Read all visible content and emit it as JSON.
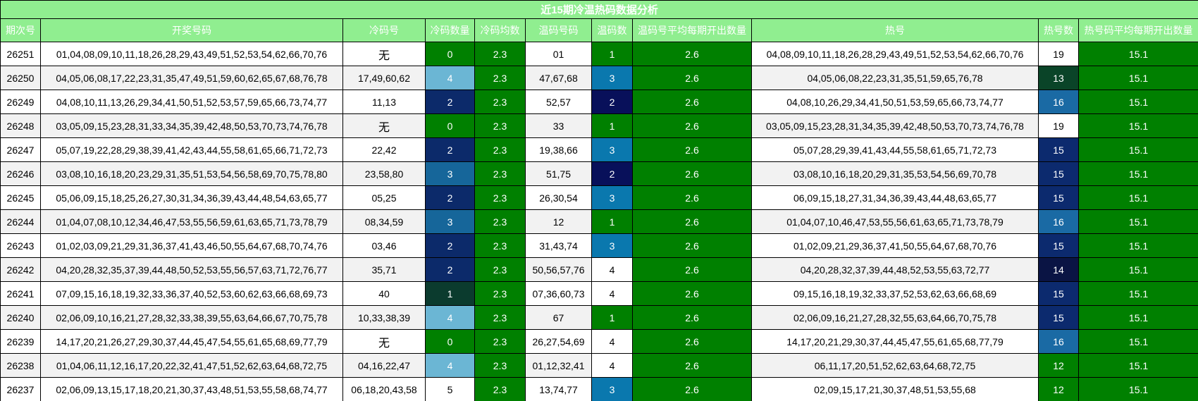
{
  "title": "近15期冷温热码数据分析",
  "header_color": "#90ee90",
  "columns": [
    "期次号",
    "开奖号码",
    "冷码号",
    "冷码数量",
    "冷码均数",
    "温码号码",
    "温码数",
    "温码号平均每期开出数量",
    "热号",
    "热号数",
    "热号码平均每期开出数量"
  ],
  "rows": [
    [
      26251,
      "01,04,08,09,10,11,18,26,28,29,43,49,51,52,53,54,62,66,70,76",
      "无",
      0,
      2.3,
      "01",
      1,
      2.6,
      "04,08,09,10,11,18,26,28,29,43,49,51,52,53,54,62,66,70,76",
      19,
      15.1
    ],
    [
      26250,
      "04,05,06,08,17,22,23,31,35,47,49,51,59,60,62,65,67,68,76,78",
      "17,49,60,62",
      4,
      2.3,
      "47,67,68",
      3,
      2.6,
      "04,05,06,08,22,23,31,35,51,59,65,76,78",
      13,
      15.1
    ],
    [
      26249,
      "04,08,10,11,13,26,29,34,41,50,51,52,53,57,59,65,66,73,74,77",
      "11,13",
      2,
      2.3,
      "52,57",
      2,
      2.6,
      "04,08,10,26,29,34,41,50,51,53,59,65,66,73,74,77",
      16,
      15.1
    ],
    [
      26248,
      "03,05,09,15,23,28,31,33,34,35,39,42,48,50,53,70,73,74,76,78",
      "无",
      0,
      2.3,
      "33",
      1,
      2.6,
      "03,05,09,15,23,28,31,34,35,39,42,48,50,53,70,73,74,76,78",
      19,
      15.1
    ],
    [
      26247,
      "05,07,19,22,28,29,38,39,41,42,43,44,55,58,61,65,66,71,72,73",
      "22,42",
      2,
      2.3,
      "19,38,66",
      3,
      2.6,
      "05,07,28,29,39,41,43,44,55,58,61,65,71,72,73",
      15,
      15.1
    ],
    [
      26246,
      "03,08,10,16,18,20,23,29,31,35,51,53,54,56,58,69,70,75,78,80",
      "23,58,80",
      3,
      2.3,
      "51,75",
      2,
      2.6,
      "03,08,10,16,18,20,29,31,35,53,54,56,69,70,78",
      15,
      15.1
    ],
    [
      26245,
      "05,06,09,15,18,25,26,27,30,31,34,36,39,43,44,48,54,63,65,77",
      "05,25",
      2,
      2.3,
      "26,30,54",
      3,
      2.6,
      "06,09,15,18,27,31,34,36,39,43,44,48,63,65,77",
      15,
      15.1
    ],
    [
      26244,
      "01,04,07,08,10,12,34,46,47,53,55,56,59,61,63,65,71,73,78,79",
      "08,34,59",
      3,
      2.3,
      "12",
      1,
      2.6,
      "01,04,07,10,46,47,53,55,56,61,63,65,71,73,78,79",
      16,
      15.1
    ],
    [
      26243,
      "01,02,03,09,21,29,31,36,37,41,43,46,50,55,64,67,68,70,74,76",
      "03,46",
      2,
      2.3,
      "31,43,74",
      3,
      2.6,
      "01,02,09,21,29,36,37,41,50,55,64,67,68,70,76",
      15,
      15.1
    ],
    [
      26242,
      "04,20,28,32,35,37,39,44,48,50,52,53,55,56,57,63,71,72,76,77",
      "35,71",
      2,
      2.3,
      "50,56,57,76",
      4,
      2.6,
      "04,20,28,32,37,39,44,48,52,53,55,63,72,77",
      14,
      15.1
    ],
    [
      26241,
      "07,09,15,16,18,19,32,33,36,37,40,52,53,60,62,63,66,68,69,73",
      "40",
      1,
      2.3,
      "07,36,60,73",
      4,
      2.6,
      "09,15,16,18,19,32,33,37,52,53,62,63,66,68,69",
      15,
      15.1
    ],
    [
      26240,
      "02,06,09,10,16,21,27,28,32,33,38,39,55,63,64,66,67,70,75,78",
      "10,33,38,39",
      4,
      2.3,
      "67",
      1,
      2.6,
      "02,06,09,16,21,27,28,32,55,63,64,66,70,75,78",
      15,
      15.1
    ],
    [
      26239,
      "14,17,20,21,26,27,29,30,37,44,45,47,54,55,61,65,68,69,77,79",
      "无",
      0,
      2.3,
      "26,27,54,69",
      4,
      2.6,
      "14,17,20,21,29,30,37,44,45,47,55,61,65,68,77,79",
      16,
      15.1
    ],
    [
      26238,
      "01,04,06,11,12,16,17,20,22,32,41,47,51,52,62,63,64,68,72,75",
      "04,16,22,47",
      4,
      2.3,
      "01,12,32,41",
      4,
      2.6,
      "06,11,17,20,51,52,62,63,64,68,72,75",
      12,
      15.1
    ],
    [
      26237,
      "02,06,09,13,15,17,18,20,21,30,37,43,48,51,53,55,58,68,74,77",
      "06,18,20,43,58",
      5,
      2.3,
      "13,74,77",
      3,
      2.6,
      "02,09,15,17,21,30,37,48,51,53,55,68",
      12,
      15.1
    ]
  ],
  "column_colors": {
    "4": "#008000",
    "7": "#008000",
    "10": "#008000"
  },
  "color_scales": {
    "3": {
      "0": "#008000",
      "1": "#0b3b2e",
      "2": "#0c2a6a",
      "3": "#16669a",
      "4": "#6bb6d4",
      "5": "#ffffff"
    },
    "6": {
      "1": "#008000",
      "2": "#08105a",
      "3": "#0a78ae",
      "4": "#ffffff"
    },
    "9": {
      "12": "#008000",
      "13": "#0a4428",
      "14": "#0a1444",
      "15": "#0c2a6e",
      "16": "#1a6aa4",
      "19": "#ffffff"
    }
  }
}
